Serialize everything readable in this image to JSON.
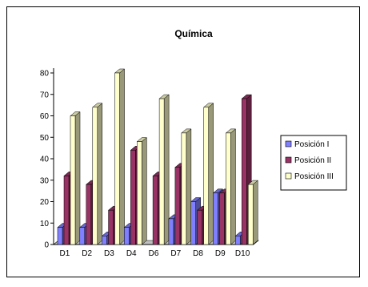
{
  "chart_data": {
    "type": "bar",
    "title": "Química",
    "categories": [
      "D1",
      "D2",
      "D3",
      "D4",
      "D6",
      "D7",
      "D8",
      "D9",
      "D10"
    ],
    "ylim": [
      0,
      80
    ],
    "yticks": [
      0,
      10,
      20,
      30,
      40,
      50,
      60,
      70,
      80
    ],
    "grid": false,
    "legend_position": "right",
    "series": [
      {
        "name": "Posición I",
        "values": [
          8,
          8,
          4,
          8,
          0,
          12,
          20,
          24,
          4
        ],
        "color": "#8080ff"
      },
      {
        "name": "Posición II",
        "values": [
          32,
          28,
          16,
          44,
          32,
          36,
          16,
          24,
          68
        ],
        "color": "#993366"
      },
      {
        "name": "Posición III",
        "values": [
          60,
          64,
          80,
          48,
          68,
          52,
          64,
          52,
          28
        ],
        "color": "#ffffcc"
      }
    ]
  }
}
